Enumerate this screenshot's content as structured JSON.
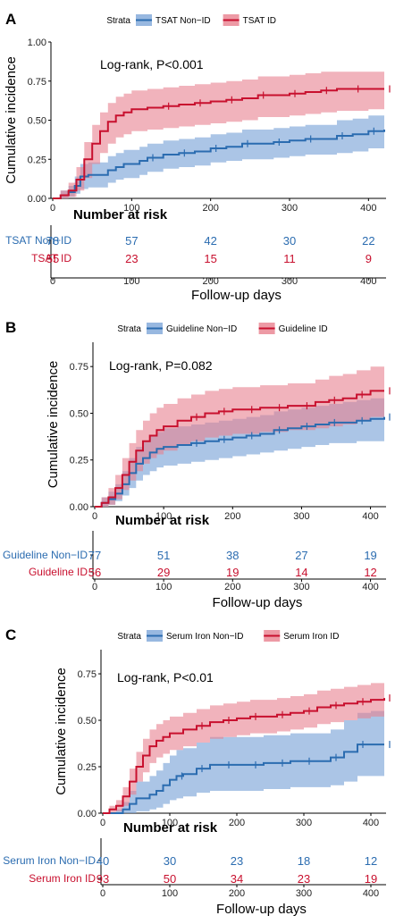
{
  "colors": {
    "non_id": "#2b6cb0",
    "non_id_band": "#7ea6d8",
    "id": "#c8102e",
    "id_band": "#e8818f"
  },
  "chart_data": [
    {
      "type": "line",
      "panel": "A",
      "legend_title": "Strata",
      "legend_placement": "top",
      "annotation": "Log-rank, P<0.001",
      "ylabel": "Cumulative incidence",
      "xlabel": "Follow-up days",
      "yticks": [
        "0.00",
        "0.25",
        "0.50",
        "0.75",
        "1.00"
      ],
      "ylim": [
        0,
        1.0
      ],
      "xlim": [
        0,
        420
      ],
      "xticks": [
        0,
        100,
        200,
        300,
        400
      ],
      "risk_table_title": "Number at risk",
      "series": [
        {
          "name": "TSAT Non−ID",
          "risk_label": "TSAT  Non−ID",
          "color": "#2b6cb0",
          "risk": [
            78,
            57,
            42,
            30,
            22
          ],
          "x": [
            0,
            10,
            20,
            28,
            35,
            45,
            60,
            70,
            80,
            90,
            100,
            110,
            120,
            140,
            160,
            180,
            200,
            220,
            240,
            260,
            280,
            300,
            320,
            340,
            360,
            380,
            400,
            420
          ],
          "y": [
            0,
            0.02,
            0.04,
            0.08,
            0.14,
            0.15,
            0.15,
            0.18,
            0.2,
            0.22,
            0.22,
            0.24,
            0.26,
            0.28,
            0.29,
            0.3,
            0.32,
            0.33,
            0.35,
            0.35,
            0.36,
            0.37,
            0.38,
            0.38,
            0.4,
            0.41,
            0.43,
            0.44
          ],
          "lower": [
            0,
            0.0,
            0.01,
            0.03,
            0.06,
            0.07,
            0.07,
            0.1,
            0.12,
            0.13,
            0.13,
            0.15,
            0.17,
            0.19,
            0.2,
            0.21,
            0.23,
            0.24,
            0.25,
            0.25,
            0.26,
            0.27,
            0.28,
            0.28,
            0.29,
            0.3,
            0.32,
            0.33
          ],
          "upper": [
            0,
            0.05,
            0.08,
            0.14,
            0.22,
            0.23,
            0.23,
            0.27,
            0.29,
            0.31,
            0.31,
            0.33,
            0.35,
            0.37,
            0.38,
            0.39,
            0.41,
            0.42,
            0.44,
            0.44,
            0.45,
            0.46,
            0.47,
            0.47,
            0.5,
            0.51,
            0.53,
            0.54
          ]
        },
        {
          "name": "TSAT ID",
          "risk_label": "TSAT  ID",
          "color": "#c8102e",
          "risk": [
            55,
            23,
            15,
            11,
            9
          ],
          "x": [
            0,
            10,
            20,
            30,
            40,
            50,
            60,
            70,
            80,
            90,
            100,
            120,
            140,
            160,
            180,
            200,
            220,
            240,
            260,
            280,
            300,
            320,
            340,
            360,
            380,
            400,
            420
          ],
          "y": [
            0,
            0.02,
            0.05,
            0.12,
            0.25,
            0.35,
            0.43,
            0.49,
            0.53,
            0.55,
            0.57,
            0.58,
            0.59,
            0.6,
            0.61,
            0.62,
            0.63,
            0.64,
            0.66,
            0.66,
            0.67,
            0.68,
            0.69,
            0.7,
            0.7,
            0.7,
            0.7
          ],
          "lower": [
            0,
            0.0,
            0.01,
            0.05,
            0.13,
            0.22,
            0.29,
            0.35,
            0.39,
            0.41,
            0.43,
            0.44,
            0.45,
            0.46,
            0.47,
            0.48,
            0.49,
            0.5,
            0.52,
            0.52,
            0.53,
            0.54,
            0.55,
            0.56,
            0.56,
            0.57,
            0.57
          ],
          "upper": [
            0,
            0.05,
            0.1,
            0.2,
            0.36,
            0.47,
            0.55,
            0.61,
            0.65,
            0.67,
            0.69,
            0.7,
            0.71,
            0.72,
            0.73,
            0.74,
            0.75,
            0.76,
            0.78,
            0.78,
            0.79,
            0.8,
            0.81,
            0.81,
            0.81,
            0.81,
            0.81
          ]
        }
      ]
    },
    {
      "type": "line",
      "panel": "B",
      "legend_title": "Strata",
      "legend_placement": "top",
      "annotation": "Log-rank, P=0.082",
      "ylabel": "Cumulative incidence",
      "xlabel": "Follow-up days",
      "yticks": [
        "0.00",
        "0.25",
        "0.50",
        "0.75"
      ],
      "ylim": [
        0,
        0.88
      ],
      "xlim": [
        0,
        420
      ],
      "xticks": [
        0,
        100,
        200,
        300,
        400
      ],
      "risk_table_title": "Number at risk",
      "series": [
        {
          "name": "Guideline Non−ID",
          "risk_label": "Guideline Non−ID",
          "color": "#2b6cb0",
          "risk": [
            77,
            51,
            38,
            27,
            19
          ],
          "x": [
            0,
            10,
            20,
            30,
            40,
            50,
            60,
            70,
            80,
            90,
            100,
            120,
            140,
            160,
            180,
            200,
            220,
            240,
            260,
            280,
            300,
            320,
            340,
            360,
            380,
            400,
            420
          ],
          "y": [
            0,
            0.02,
            0.04,
            0.07,
            0.12,
            0.18,
            0.23,
            0.26,
            0.29,
            0.31,
            0.32,
            0.33,
            0.34,
            0.35,
            0.36,
            0.37,
            0.38,
            0.39,
            0.41,
            0.42,
            0.43,
            0.44,
            0.45,
            0.45,
            0.46,
            0.47,
            0.48
          ],
          "lower": [
            0,
            0.0,
            0.01,
            0.03,
            0.06,
            0.1,
            0.14,
            0.17,
            0.19,
            0.21,
            0.22,
            0.23,
            0.24,
            0.25,
            0.26,
            0.27,
            0.28,
            0.29,
            0.3,
            0.31,
            0.32,
            0.33,
            0.34,
            0.34,
            0.35,
            0.35,
            0.36
          ],
          "upper": [
            0,
            0.05,
            0.08,
            0.12,
            0.19,
            0.26,
            0.32,
            0.35,
            0.38,
            0.4,
            0.42,
            0.43,
            0.44,
            0.45,
            0.46,
            0.47,
            0.48,
            0.49,
            0.51,
            0.52,
            0.53,
            0.54,
            0.55,
            0.56,
            0.57,
            0.58,
            0.59
          ]
        },
        {
          "name": "Guideline ID",
          "risk_label": "Guideline ID",
          "color": "#c8102e",
          "risk": [
            56,
            29,
            19,
            14,
            12
          ],
          "x": [
            0,
            10,
            20,
            30,
            40,
            50,
            60,
            70,
            80,
            90,
            100,
            120,
            140,
            160,
            180,
            200,
            220,
            240,
            260,
            280,
            300,
            320,
            340,
            360,
            380,
            400,
            420
          ],
          "y": [
            0,
            0.02,
            0.05,
            0.1,
            0.17,
            0.24,
            0.3,
            0.35,
            0.38,
            0.41,
            0.43,
            0.46,
            0.48,
            0.5,
            0.51,
            0.52,
            0.52,
            0.53,
            0.53,
            0.54,
            0.54,
            0.56,
            0.57,
            0.58,
            0.6,
            0.62,
            0.62
          ],
          "lower": [
            0,
            0.0,
            0.01,
            0.04,
            0.09,
            0.14,
            0.19,
            0.23,
            0.26,
            0.28,
            0.3,
            0.33,
            0.35,
            0.37,
            0.38,
            0.39,
            0.39,
            0.4,
            0.4,
            0.41,
            0.41,
            0.42,
            0.43,
            0.44,
            0.46,
            0.48,
            0.48
          ],
          "upper": [
            0,
            0.05,
            0.1,
            0.17,
            0.26,
            0.34,
            0.41,
            0.46,
            0.5,
            0.53,
            0.55,
            0.58,
            0.6,
            0.62,
            0.63,
            0.64,
            0.64,
            0.65,
            0.65,
            0.66,
            0.66,
            0.68,
            0.7,
            0.71,
            0.73,
            0.75,
            0.75
          ]
        }
      ]
    },
    {
      "type": "line",
      "panel": "C",
      "legend_title": "Strata",
      "legend_placement": "top",
      "annotation": "Log-rank, P<0.01",
      "ylabel": "Cumulative incidence",
      "xlabel": "Follow-up days",
      "yticks": [
        "0.00",
        "0.25",
        "0.50",
        "0.75"
      ],
      "ylim": [
        0,
        0.88
      ],
      "xlim": [
        0,
        420
      ],
      "xticks": [
        0,
        100,
        200,
        300,
        400
      ],
      "risk_table_title": "Number at risk",
      "series": [
        {
          "name": "Serum Iron Non−ID",
          "risk_label": "Serum Iron Non−ID",
          "color": "#2b6cb0",
          "risk": [
            40,
            30,
            23,
            18,
            12
          ],
          "x": [
            0,
            20,
            30,
            40,
            50,
            60,
            70,
            80,
            90,
            100,
            110,
            120,
            140,
            160,
            180,
            200,
            220,
            240,
            260,
            280,
            300,
            320,
            340,
            360,
            380,
            400,
            420
          ],
          "y": [
            0,
            0.0,
            0.02,
            0.05,
            0.08,
            0.08,
            0.1,
            0.12,
            0.15,
            0.18,
            0.2,
            0.21,
            0.24,
            0.26,
            0.26,
            0.26,
            0.26,
            0.27,
            0.27,
            0.28,
            0.28,
            0.28,
            0.3,
            0.33,
            0.37,
            0.37,
            0.37
          ],
          "lower": [
            0,
            0.0,
            0.0,
            0.0,
            0.01,
            0.01,
            0.02,
            0.03,
            0.05,
            0.07,
            0.08,
            0.09,
            0.11,
            0.12,
            0.12,
            0.12,
            0.12,
            0.13,
            0.13,
            0.14,
            0.14,
            0.14,
            0.15,
            0.17,
            0.2,
            0.2,
            0.2
          ],
          "upper": [
            0,
            0.02,
            0.06,
            0.12,
            0.17,
            0.17,
            0.2,
            0.23,
            0.27,
            0.31,
            0.34,
            0.35,
            0.38,
            0.41,
            0.41,
            0.41,
            0.41,
            0.42,
            0.42,
            0.43,
            0.43,
            0.43,
            0.45,
            0.5,
            0.54,
            0.55,
            0.55
          ]
        },
        {
          "name": "Serum Iron ID",
          "risk_label": "Serum Iron ID",
          "color": "#c8102e",
          "risk": [
            93,
            50,
            34,
            23,
            19
          ],
          "x": [
            0,
            10,
            20,
            30,
            40,
            50,
            60,
            70,
            80,
            90,
            100,
            120,
            140,
            160,
            180,
            200,
            220,
            240,
            260,
            280,
            300,
            320,
            340,
            360,
            380,
            400,
            420
          ],
          "y": [
            0,
            0.02,
            0.04,
            0.09,
            0.17,
            0.25,
            0.31,
            0.36,
            0.39,
            0.41,
            0.43,
            0.45,
            0.47,
            0.49,
            0.5,
            0.51,
            0.52,
            0.52,
            0.53,
            0.54,
            0.55,
            0.57,
            0.58,
            0.59,
            0.6,
            0.61,
            0.62
          ],
          "lower": [
            0,
            0.0,
            0.01,
            0.04,
            0.1,
            0.17,
            0.22,
            0.27,
            0.3,
            0.32,
            0.34,
            0.36,
            0.38,
            0.4,
            0.41,
            0.42,
            0.43,
            0.43,
            0.44,
            0.45,
            0.46,
            0.48,
            0.49,
            0.5,
            0.51,
            0.52,
            0.53
          ],
          "upper": [
            0,
            0.04,
            0.07,
            0.14,
            0.24,
            0.33,
            0.4,
            0.45,
            0.48,
            0.5,
            0.52,
            0.54,
            0.56,
            0.58,
            0.59,
            0.6,
            0.61,
            0.61,
            0.62,
            0.63,
            0.64,
            0.66,
            0.67,
            0.68,
            0.69,
            0.7,
            0.71
          ]
        }
      ]
    }
  ]
}
